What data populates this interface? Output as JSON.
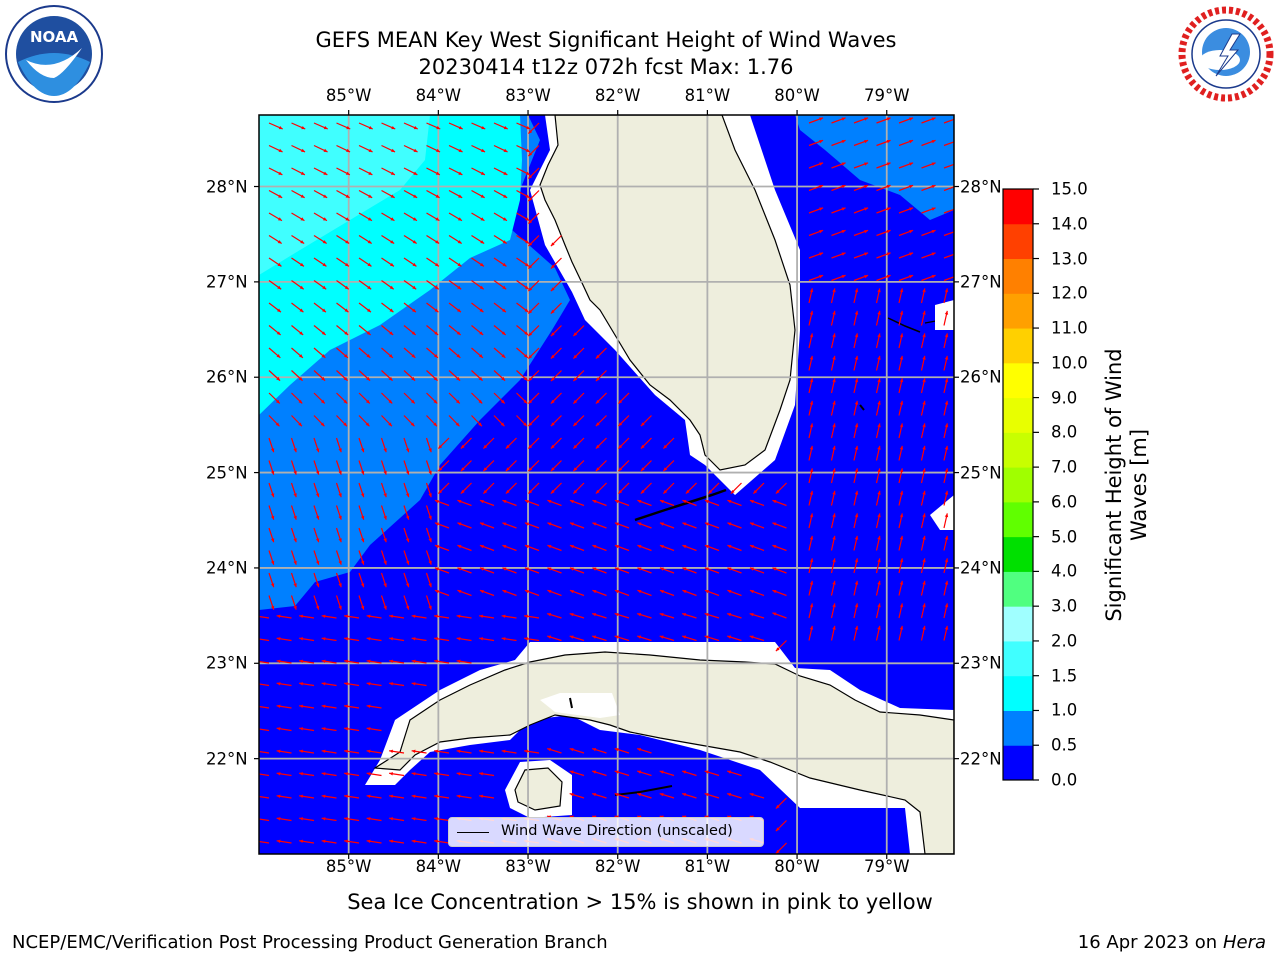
{
  "header": {
    "title_line1": "GEFS MEAN Key West Significant Height of Wind Waves",
    "title_line2": "20230414 t12z 072h fcst   Max: 1.76"
  },
  "logos": {
    "left": {
      "text": "NOAA",
      "ring_text": "NATIONAL OCEANIC AND ATMOSPHERIC ADMINISTRATION · U.S. DEPARTMENT OF COMMERCE",
      "icon": "noaa-logo"
    },
    "right": {
      "ring_text": "NATIONAL WEATHER SERVICE",
      "icon": "nws-logo"
    }
  },
  "map": {
    "lon_labels": [
      "85°W",
      "84°W",
      "83°W",
      "82°W",
      "81°W",
      "80°W",
      "79°W"
    ],
    "lat_labels": [
      "28°N",
      "27°N",
      "26°N",
      "25°N",
      "24°N",
      "23°N",
      "22°N"
    ],
    "extent": {
      "lon_min": -86.0,
      "lon_max": -78.25,
      "lat_min": 21.0,
      "lat_max": 28.75
    },
    "colors": {
      "land": "#eeeedd",
      "ocean_0_05": "#0000ff",
      "ocean_05_1": "#0080ff",
      "ocean_1_15": "#00ffff",
      "ocean_15_2": "#40ffff",
      "arrow": "#ff0000",
      "grid": "#b0b0b0"
    },
    "legend": {
      "label": "Wind Wave Direction (unscaled)"
    }
  },
  "colorbar": {
    "label": "Significant Height of Wind Waves [m]",
    "label_line1": "Significant Height of Wind",
    "label_line2": "Waves [m]",
    "ticks": [
      "0.0",
      "0.5",
      "1.0",
      "1.5",
      "2.0",
      "3.0",
      "4.0",
      "5.0",
      "6.0",
      "7.0",
      "8.0",
      "9.0",
      "10.0",
      "11.0",
      "12.0",
      "13.0",
      "14.0",
      "15.0"
    ],
    "colors": [
      "#0000ff",
      "#0080ff",
      "#00ffff",
      "#40ffff",
      "#a0ffff",
      "#50ff80",
      "#00e000",
      "#60ff00",
      "#a0ff00",
      "#c8ff00",
      "#e8ff00",
      "#ffff00",
      "#ffd000",
      "#ffa000",
      "#ff8000",
      "#ff4000",
      "#ff0000"
    ]
  },
  "footer": {
    "sea_ice_note": "Sea Ice Concentration > 15% is shown in pink to yellow",
    "credit": "NCEP/EMC/Verification Post Processing Product Generation Branch",
    "date": "16 Apr 2023 on ",
    "host": "Hera"
  }
}
